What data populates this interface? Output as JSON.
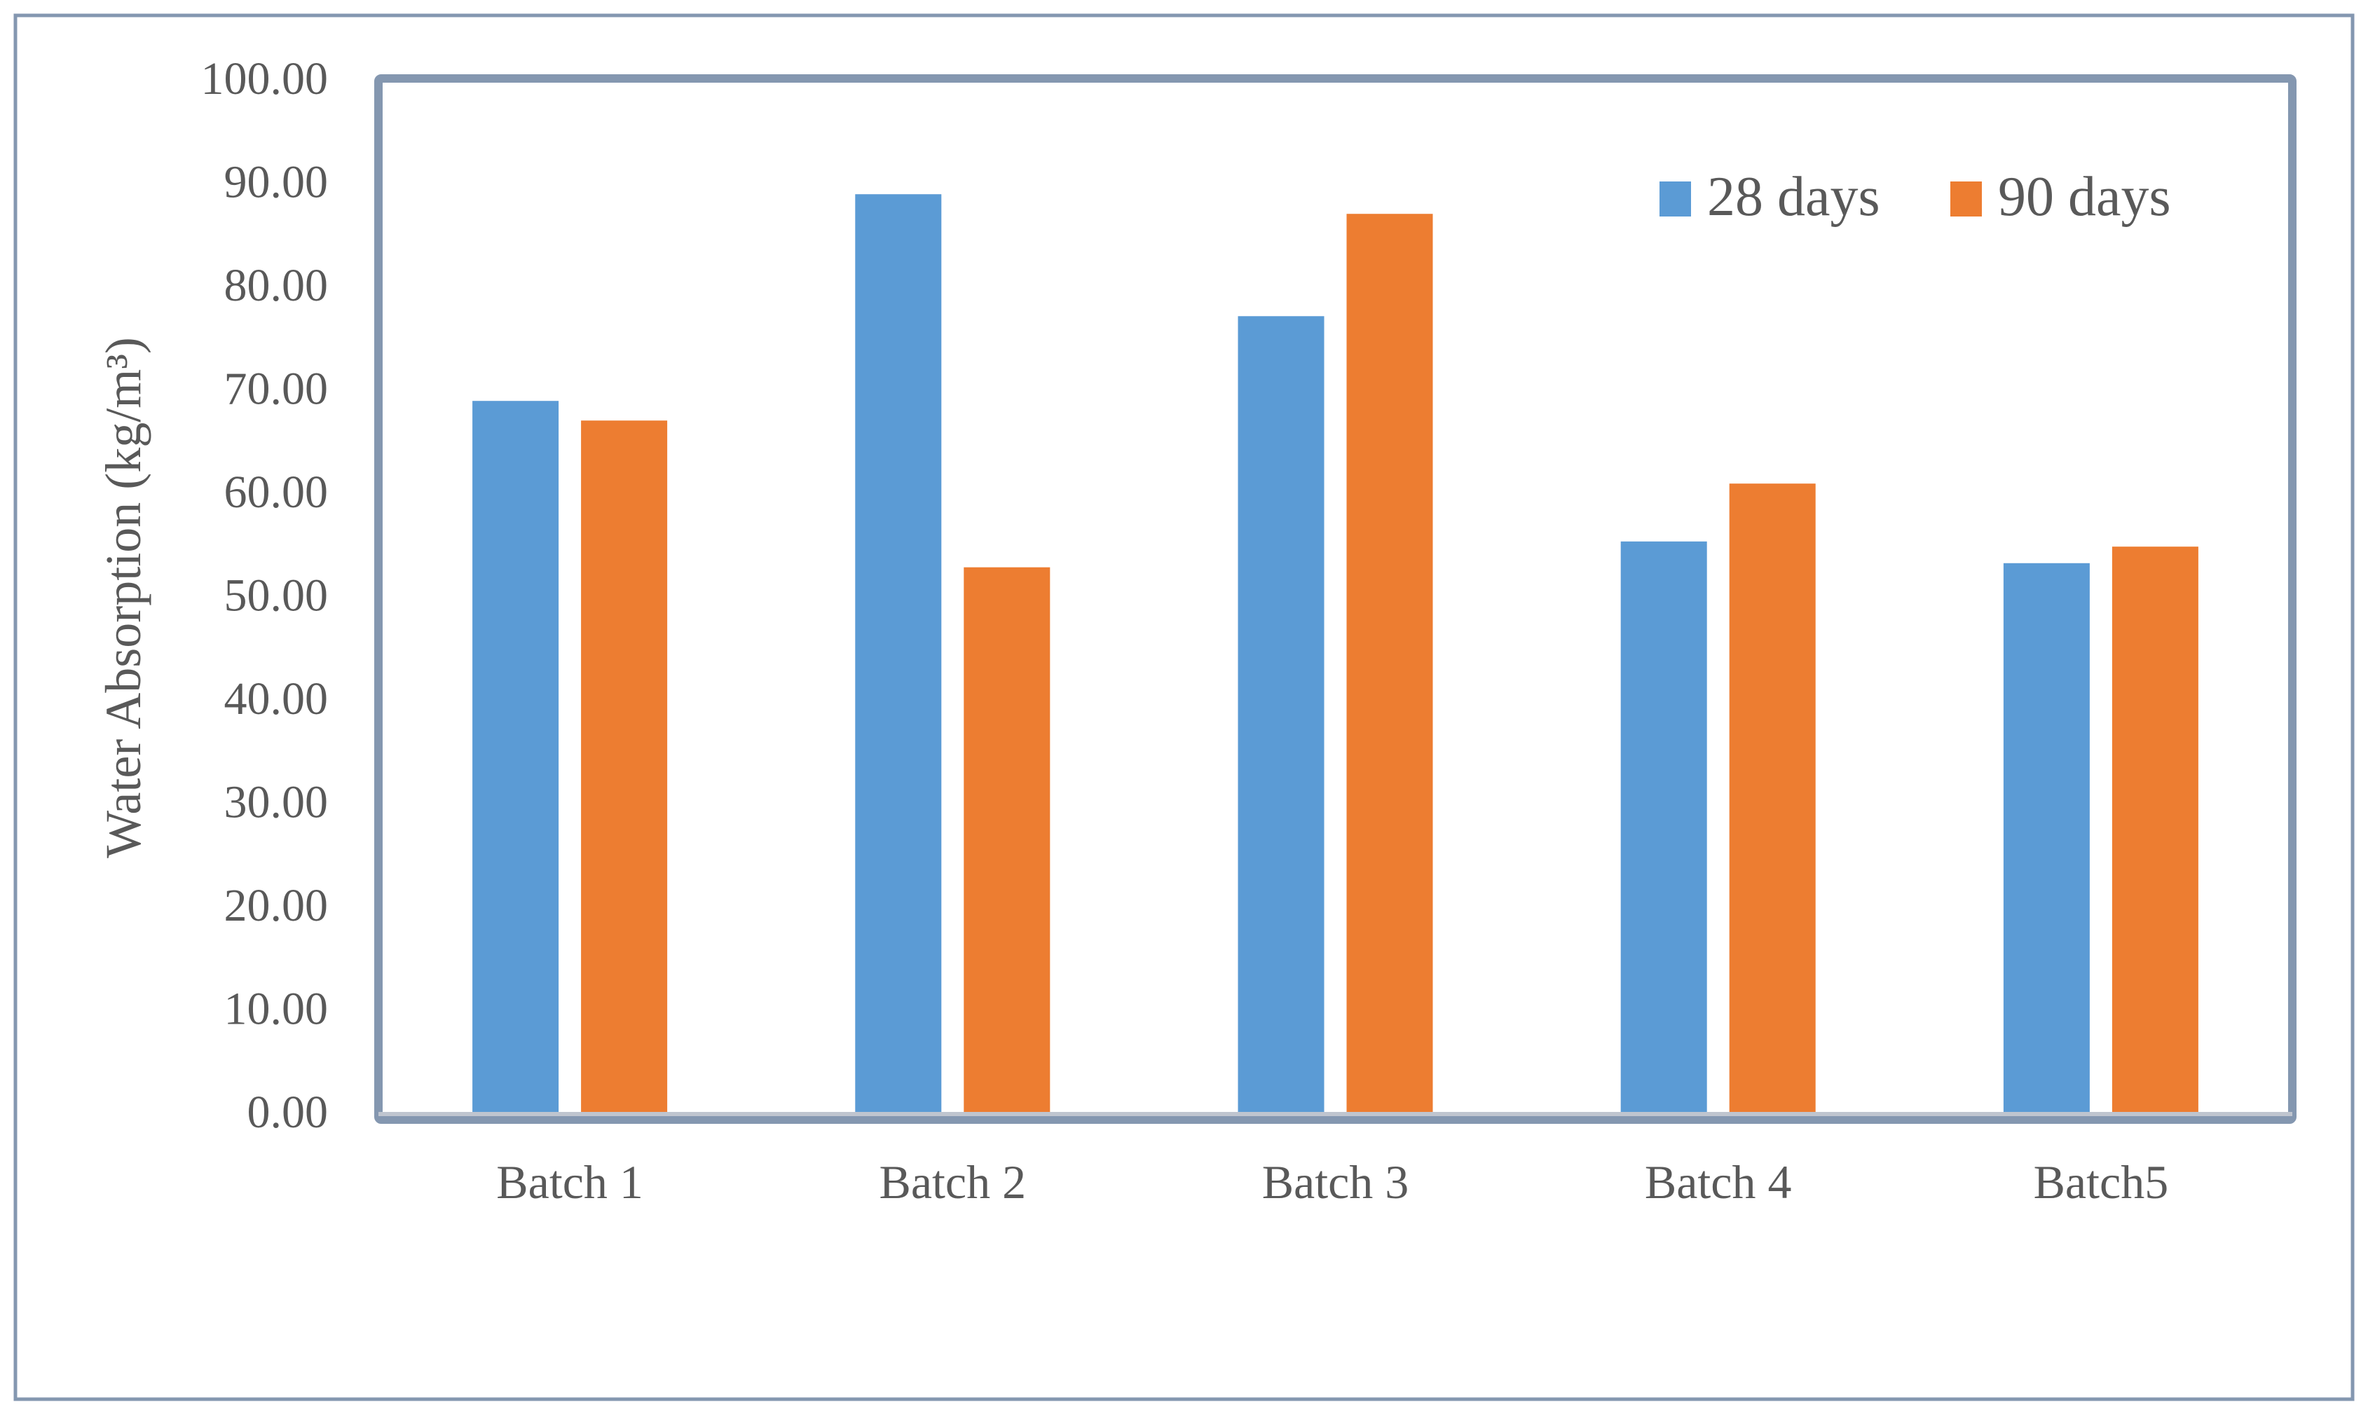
{
  "chart_data": {
    "type": "bar",
    "title": "",
    "xlabel": "",
    "ylabel": "Water Absorption (kg/m³)",
    "ylim": [
      0,
      100
    ],
    "yticks": [
      "0.00",
      "10.00",
      "20.00",
      "30.00",
      "40.00",
      "50.00",
      "60.00",
      "70.00",
      "80.00",
      "90.00",
      "100.00"
    ],
    "categories": [
      "Batch 1",
      "Batch 2",
      "Batch 3",
      "Batch 4",
      "Batch5"
    ],
    "series": [
      {
        "name": "28 days",
        "color": "#5B9BD5",
        "values": [
          68.8,
          88.8,
          77.0,
          55.2,
          53.1
        ]
      },
      {
        "name": "90 days",
        "color": "#ED7D31",
        "values": [
          66.9,
          52.7,
          86.9,
          60.8,
          54.7
        ]
      }
    ],
    "grid": false,
    "legend_position": "top-right",
    "frame_color": "#8497B0"
  }
}
